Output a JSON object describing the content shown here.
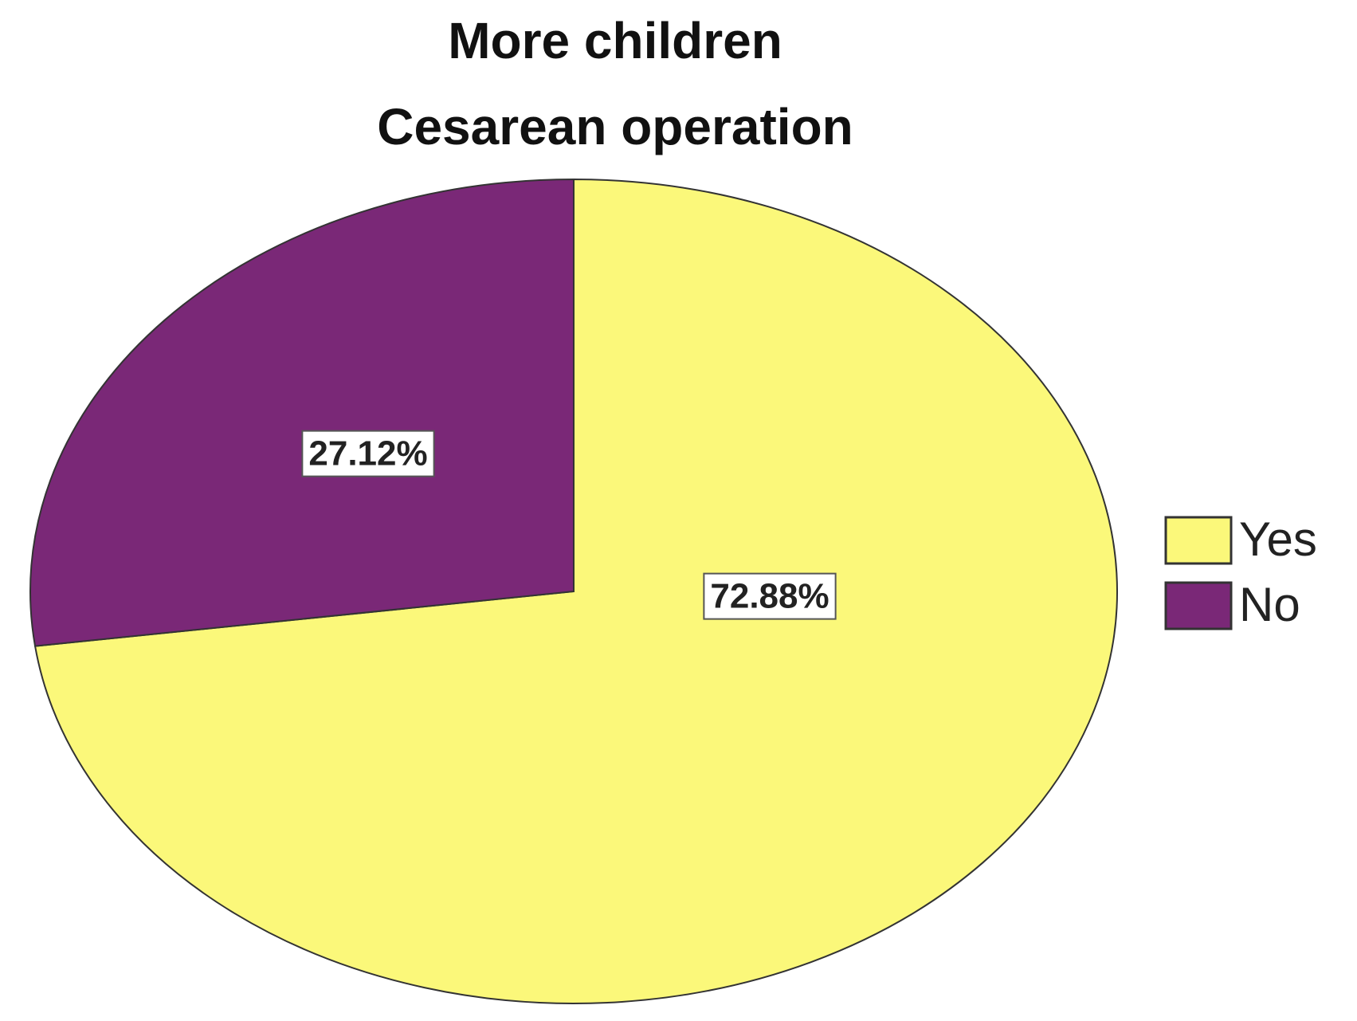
{
  "chart_data": {
    "type": "pie",
    "title": "More children",
    "subtitle": "Cesarean operation",
    "categories": [
      "Yes",
      "No"
    ],
    "values": [
      72.88,
      27.12
    ],
    "value_labels": [
      "72.88%",
      "27.12%"
    ],
    "colors": [
      "#fbf87a",
      "#7a2877"
    ],
    "legend": "right"
  }
}
